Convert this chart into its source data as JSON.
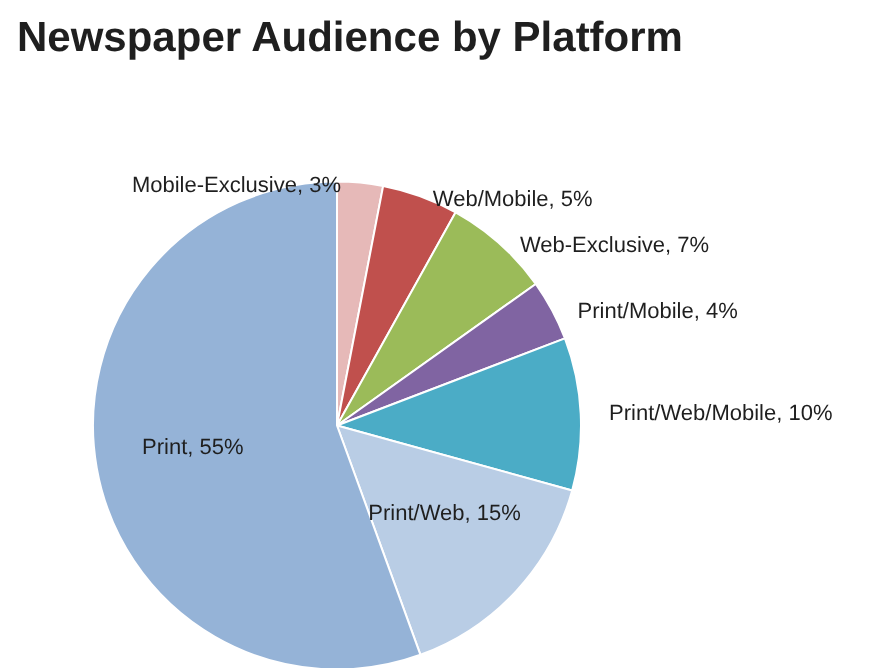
{
  "chart_data": {
    "type": "pie",
    "title": "Newspaper Audience by Platform",
    "categories": [
      "Mobile-Exclusive",
      "Web/Mobile",
      "Web-Exclusive",
      "Print/Mobile",
      "Print/Web/Mobile",
      "Print/Web",
      "Print"
    ],
    "values": [
      3,
      5,
      7,
      4,
      10,
      15,
      55
    ],
    "value_labels": [
      "3%",
      "5%",
      "7%",
      "4%",
      "10%",
      "15%",
      "55%"
    ],
    "colors": [
      "#e6b9b8",
      "#c0504d",
      "#9bbb59",
      "#8064a2",
      "#4bacc6",
      "#b9cde5",
      "#95b3d7"
    ]
  }
}
